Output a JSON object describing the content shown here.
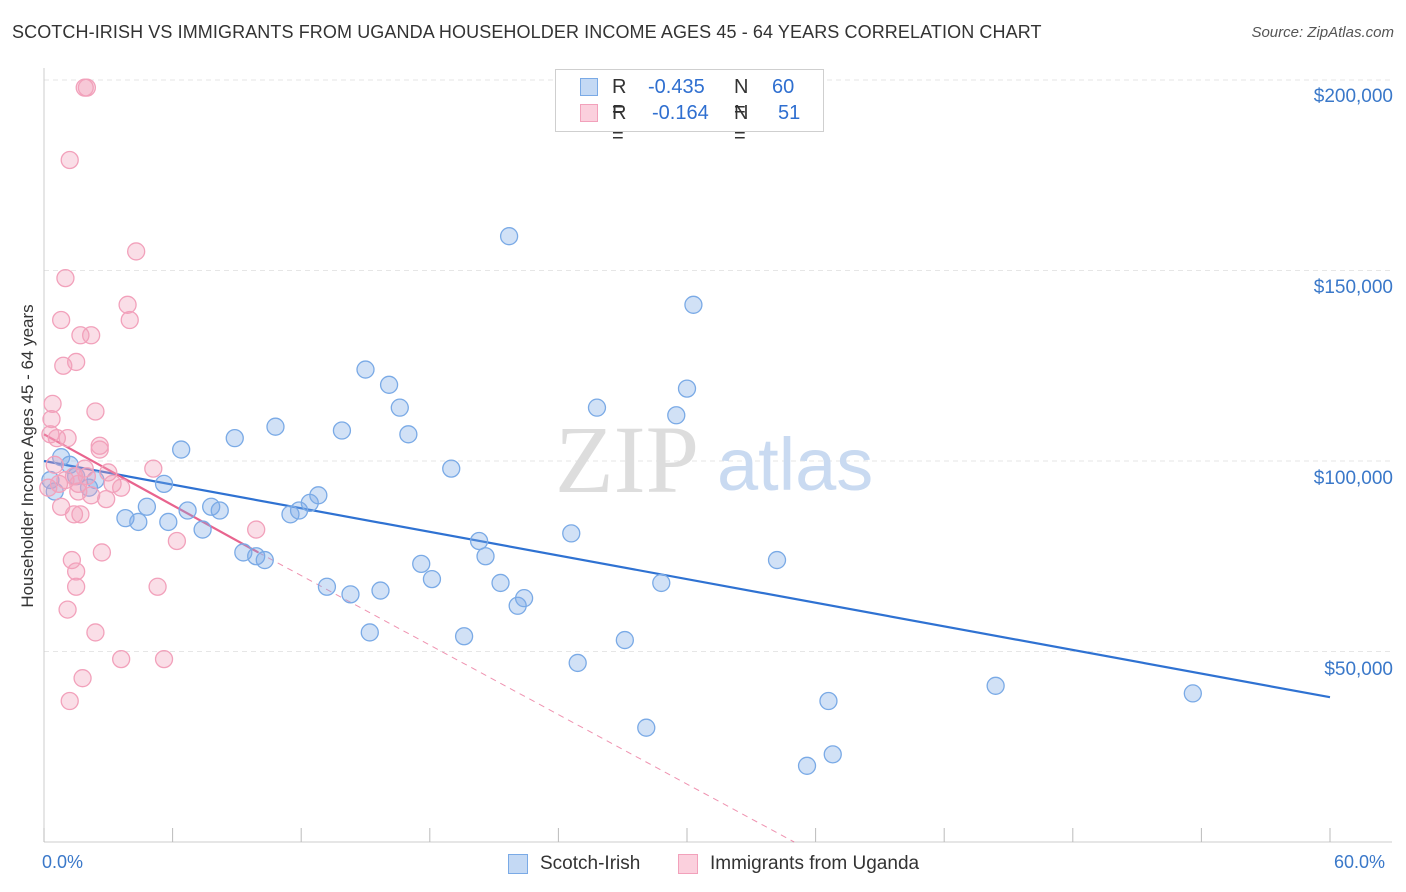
{
  "title": "SCOTCH-IRISH VS IMMIGRANTS FROM UGANDA HOUSEHOLDER INCOME AGES 45 - 64 YEARS CORRELATION CHART",
  "source": "Source: ZipAtlas.com",
  "watermark": {
    "zip": "ZIP",
    "atlas": "atlas"
  },
  "stats": [
    {
      "r_label": "R =",
      "r_value": "-0.435",
      "n_label": "N =",
      "n_value": "60",
      "color": "#a9c8ef",
      "border": "#6fa0dd"
    },
    {
      "r_label": "R =",
      "r_value": "-0.164",
      "n_label": "N =",
      "n_value": "51",
      "color": "#f8c0d0",
      "border": "#e98aa8"
    }
  ],
  "chart_data": {
    "type": "scatter",
    "title": "SCOTCH-IRISH VS IMMIGRANTS FROM UGANDA HOUSEHOLDER INCOME AGES 45 - 64 YEARS CORRELATION CHART",
    "xlabel": "",
    "ylabel": "Householder Income Ages 45 - 64 years",
    "xlim": [
      0,
      60
    ],
    "ylim": [
      0,
      210000
    ],
    "x_tick_labels": [
      "0.0%",
      "60.0%"
    ],
    "y_ticks": [
      50000,
      100000,
      150000,
      200000
    ],
    "y_tick_labels": [
      "$50,000",
      "$100,000",
      "$150,000",
      "$200,000"
    ],
    "grid": true,
    "legend_position": "bottom",
    "series": [
      {
        "name": "Scotch-Irish",
        "color": "#7aaae6",
        "trend_color": "#2f72d2",
        "trend": {
          "x": [
            0,
            60
          ],
          "y": [
            100000,
            38000
          ]
        },
        "points": [
          [
            0.3,
            95000
          ],
          [
            0.5,
            92000
          ],
          [
            0.8,
            101000
          ],
          [
            1.2,
            99000
          ],
          [
            1.5,
            96000
          ],
          [
            2.1,
            93000
          ],
          [
            2.4,
            95000
          ],
          [
            3.8,
            85000
          ],
          [
            4.4,
            84000
          ],
          [
            4.8,
            88000
          ],
          [
            5.6,
            94000
          ],
          [
            5.8,
            84000
          ],
          [
            6.4,
            103000
          ],
          [
            6.7,
            87000
          ],
          [
            7.4,
            82000
          ],
          [
            7.8,
            88000
          ],
          [
            8.2,
            87000
          ],
          [
            8.9,
            106000
          ],
          [
            9.3,
            76000
          ],
          [
            9.9,
            75000
          ],
          [
            10.3,
            74000
          ],
          [
            10.8,
            109000
          ],
          [
            11.5,
            86000
          ],
          [
            11.9,
            87000
          ],
          [
            12.4,
            89000
          ],
          [
            12.8,
            91000
          ],
          [
            13.2,
            67000
          ],
          [
            13.9,
            108000
          ],
          [
            14.3,
            65000
          ],
          [
            15.0,
            124000
          ],
          [
            15.2,
            55000
          ],
          [
            15.7,
            66000
          ],
          [
            16.1,
            120000
          ],
          [
            16.6,
            114000
          ],
          [
            17.0,
            107000
          ],
          [
            17.6,
            73000
          ],
          [
            18.1,
            69000
          ],
          [
            19.0,
            98000
          ],
          [
            19.6,
            54000
          ],
          [
            20.3,
            79000
          ],
          [
            20.6,
            75000
          ],
          [
            21.3,
            68000
          ],
          [
            21.7,
            159000
          ],
          [
            22.1,
            62000
          ],
          [
            22.4,
            64000
          ],
          [
            24.6,
            81000
          ],
          [
            24.9,
            47000
          ],
          [
            25.8,
            114000
          ],
          [
            27.1,
            53000
          ],
          [
            28.1,
            30000
          ],
          [
            28.8,
            68000
          ],
          [
            29.5,
            112000
          ],
          [
            30.0,
            119000
          ],
          [
            30.3,
            141000
          ],
          [
            34.2,
            74000
          ],
          [
            35.6,
            20000
          ],
          [
            36.6,
            37000
          ],
          [
            36.8,
            23000
          ],
          [
            44.4,
            41000
          ],
          [
            53.6,
            39000
          ]
        ]
      },
      {
        "name": "Immigrants from Uganda",
        "color": "#f2a1bb",
        "trend_color": "#e8648e",
        "trend": {
          "x": [
            0,
            10
          ],
          "y": [
            107000,
            76000
          ]
        },
        "trend_dashed": {
          "x": [
            10,
            35
          ],
          "y": [
            76000,
            0
          ]
        },
        "points": [
          [
            0.2,
            93000
          ],
          [
            0.3,
            107000
          ],
          [
            0.35,
            111000
          ],
          [
            0.4,
            115000
          ],
          [
            0.5,
            99000
          ],
          [
            0.6,
            106000
          ],
          [
            0.7,
            94000
          ],
          [
            0.8,
            137000
          ],
          [
            0.8,
            88000
          ],
          [
            0.9,
            125000
          ],
          [
            1.0,
            148000
          ],
          [
            1.0,
            95000
          ],
          [
            1.1,
            106000
          ],
          [
            1.1,
            61000
          ],
          [
            1.2,
            37000
          ],
          [
            1.2,
            179000
          ],
          [
            1.3,
            74000
          ],
          [
            1.4,
            86000
          ],
          [
            1.4,
            96000
          ],
          [
            1.5,
            126000
          ],
          [
            1.5,
            67000
          ],
          [
            1.5,
            71000
          ],
          [
            1.6,
            92000
          ],
          [
            1.6,
            94000
          ],
          [
            1.7,
            133000
          ],
          [
            1.7,
            86000
          ],
          [
            1.8,
            43000
          ],
          [
            1.9,
            98000
          ],
          [
            1.9,
            198000
          ],
          [
            2.0,
            198000
          ],
          [
            2.0,
            96000
          ],
          [
            2.2,
            91000
          ],
          [
            2.2,
            133000
          ],
          [
            2.4,
            113000
          ],
          [
            2.4,
            55000
          ],
          [
            2.6,
            104000
          ],
          [
            2.6,
            103000
          ],
          [
            2.7,
            76000
          ],
          [
            2.9,
            90000
          ],
          [
            3.0,
            97000
          ],
          [
            3.2,
            94000
          ],
          [
            3.6,
            48000
          ],
          [
            3.6,
            93000
          ],
          [
            3.9,
            141000
          ],
          [
            4.0,
            137000
          ],
          [
            4.3,
            155000
          ],
          [
            5.1,
            98000
          ],
          [
            5.3,
            67000
          ],
          [
            5.6,
            48000
          ],
          [
            6.2,
            79000
          ],
          [
            9.9,
            82000
          ]
        ]
      }
    ]
  }
}
